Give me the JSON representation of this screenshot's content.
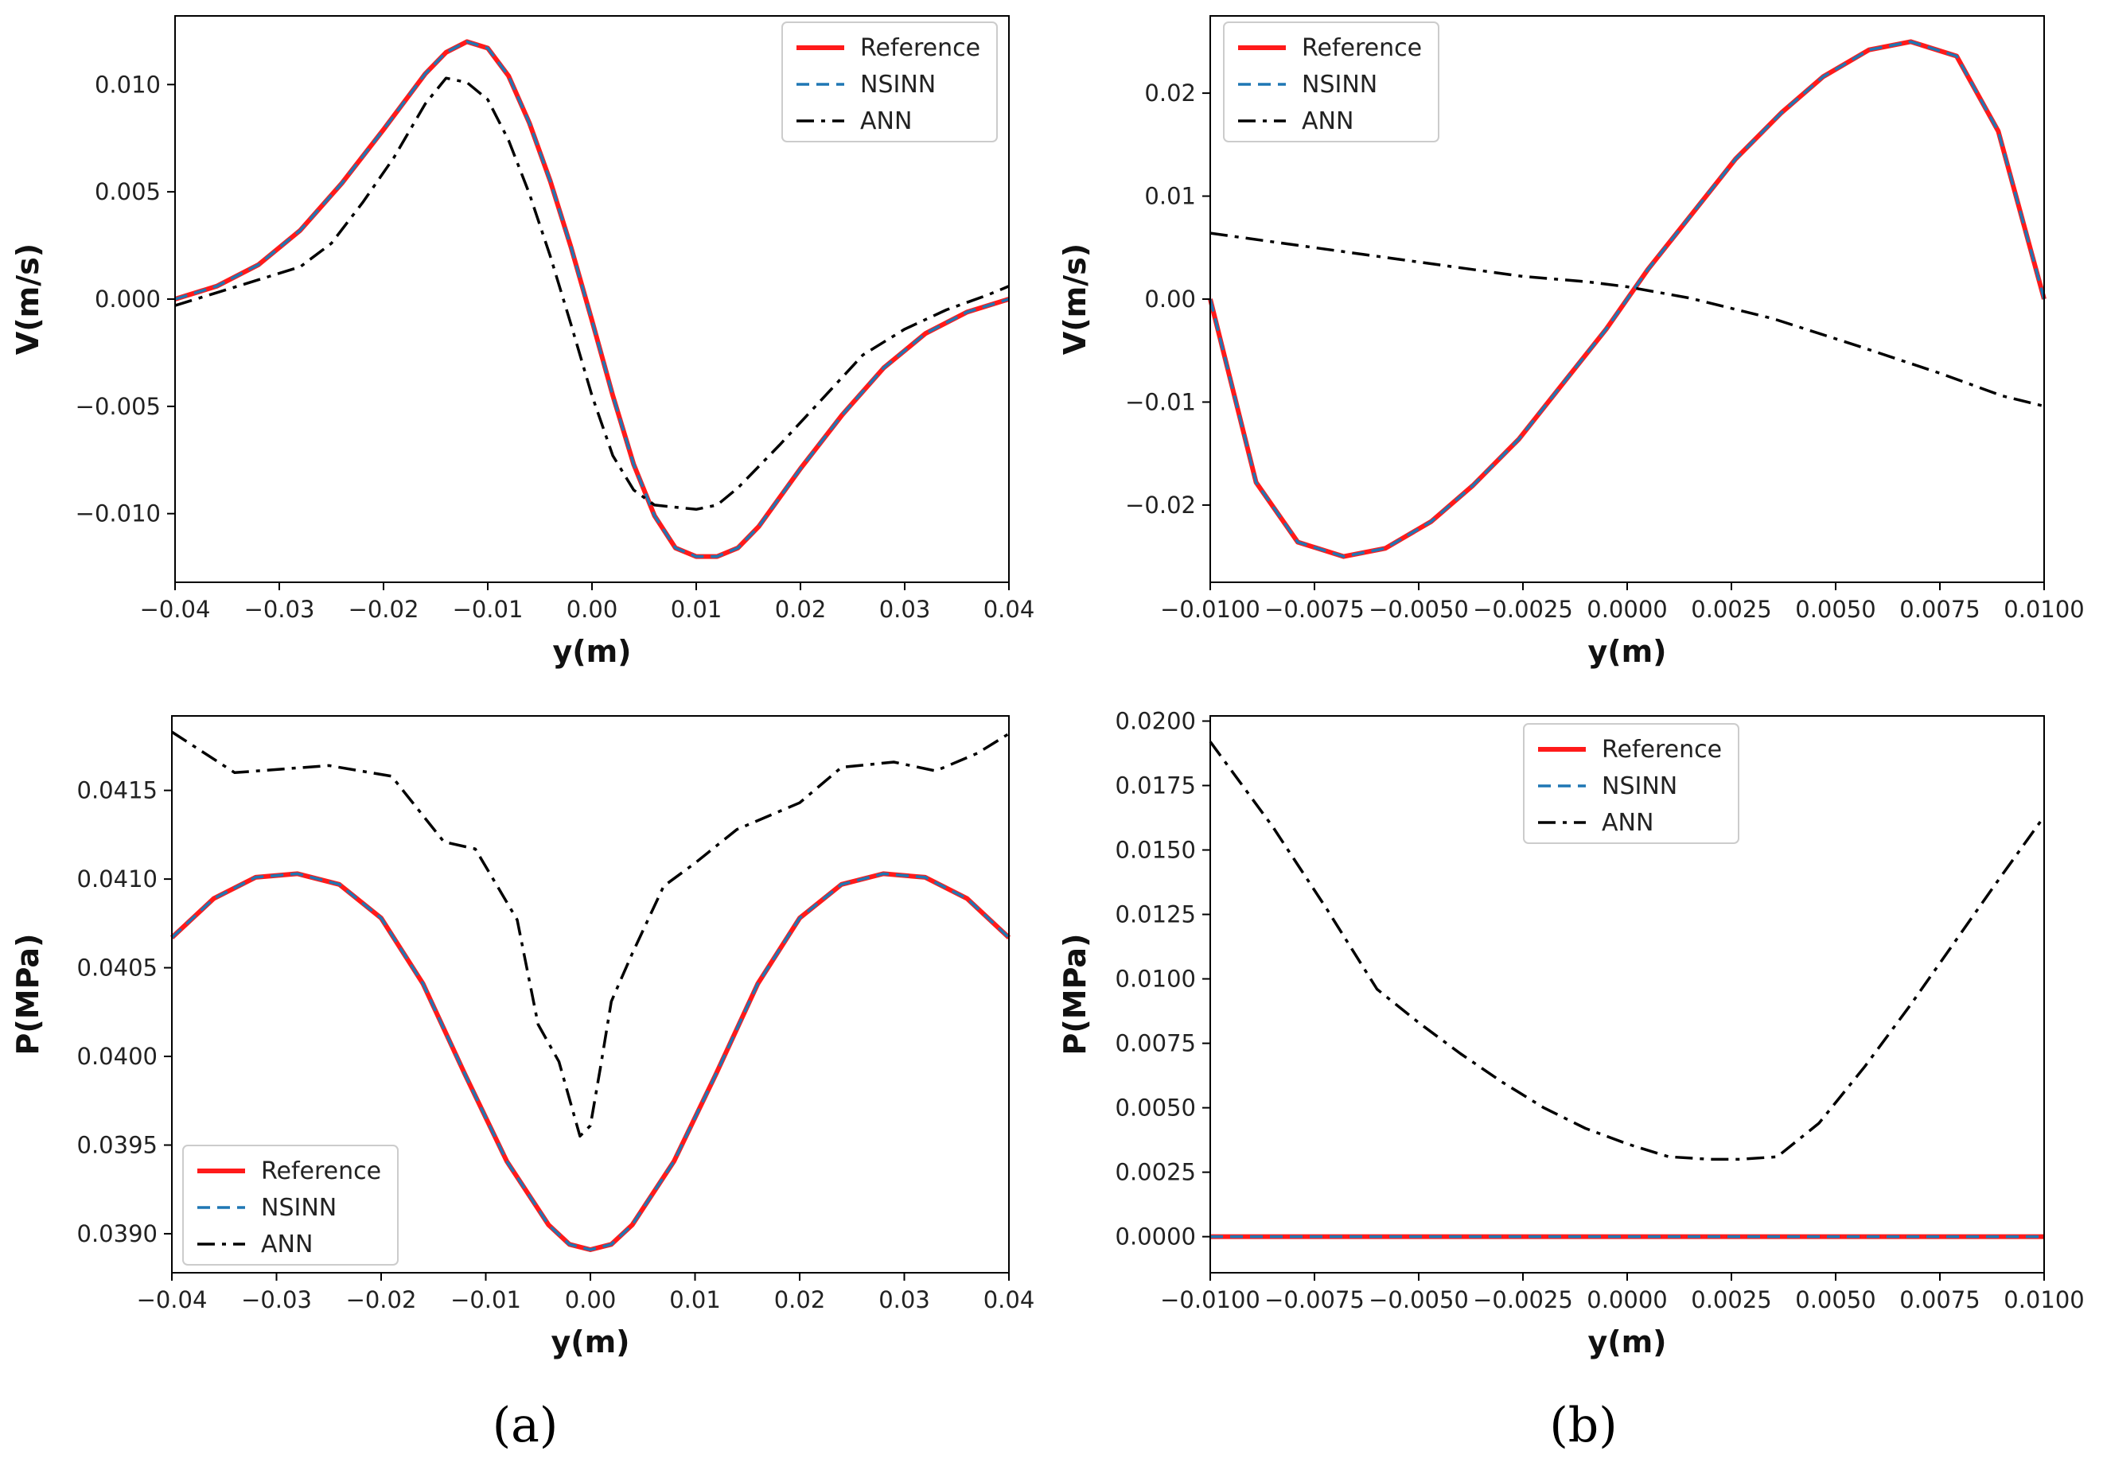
{
  "panel_labels": [
    "(a)",
    "(b)"
  ],
  "chart_data": [
    {
      "type": "line",
      "panel": "top-left",
      "xlabel": "y(m)",
      "ylabel": "V(m/s)",
      "xlim": [
        -0.04,
        0.04
      ],
      "ylim": [
        -0.0132,
        0.0132
      ],
      "xticks": [
        -0.04,
        -0.03,
        -0.02,
        -0.01,
        0.0,
        0.01,
        0.02,
        0.03,
        0.04
      ],
      "xtick_labels": [
        "−0.04",
        "−0.03",
        "−0.02",
        "−0.01",
        "0.00",
        "0.01",
        "0.02",
        "0.03",
        "0.04"
      ],
      "yticks": [
        0.01,
        0.005,
        0.0,
        -0.005,
        -0.01
      ],
      "ytick_labels": [
        "0.010",
        "0.005",
        "0.000",
        "−0.005",
        "−0.010"
      ],
      "legend": "top-right",
      "series": [
        {
          "name": "Reference",
          "color": "#ff1a1a",
          "style": "solid",
          "x": [
            -0.04,
            -0.036,
            -0.032,
            -0.028,
            -0.024,
            -0.02,
            -0.016,
            -0.014,
            -0.012,
            -0.01,
            -0.008,
            -0.006,
            -0.004,
            -0.002,
            0.0,
            0.002,
            0.004,
            0.006,
            0.008,
            0.01,
            0.012,
            0.014,
            0.016,
            0.02,
            0.024,
            0.028,
            0.032,
            0.036,
            0.04
          ],
          "y": [
            0.0,
            0.0006,
            0.0016,
            0.0032,
            0.0054,
            0.0079,
            0.0105,
            0.0115,
            0.012,
            0.0117,
            0.0104,
            0.0082,
            0.0055,
            0.0024,
            -0.001,
            -0.0045,
            -0.0077,
            -0.0101,
            -0.0116,
            -0.012,
            -0.012,
            -0.0116,
            -0.0106,
            -0.0079,
            -0.0054,
            -0.0032,
            -0.0016,
            -0.0006,
            0.0
          ]
        },
        {
          "name": "NSINN",
          "color": "#1f77b4",
          "style": "dashed",
          "x": [
            -0.04,
            -0.036,
            -0.032,
            -0.028,
            -0.024,
            -0.02,
            -0.016,
            -0.014,
            -0.012,
            -0.01,
            -0.008,
            -0.006,
            -0.004,
            -0.002,
            0.0,
            0.002,
            0.004,
            0.006,
            0.008,
            0.01,
            0.012,
            0.014,
            0.016,
            0.02,
            0.024,
            0.028,
            0.032,
            0.036,
            0.04
          ],
          "y": [
            0.0,
            0.0006,
            0.0016,
            0.0032,
            0.0054,
            0.0079,
            0.0105,
            0.0115,
            0.012,
            0.0117,
            0.0104,
            0.0082,
            0.0055,
            0.0024,
            -0.001,
            -0.0045,
            -0.0077,
            -0.0101,
            -0.0116,
            -0.012,
            -0.012,
            -0.0116,
            -0.0106,
            -0.0079,
            -0.0054,
            -0.0032,
            -0.0016,
            -0.0006,
            0.0
          ]
        },
        {
          "name": "ANN",
          "color": "#000000",
          "style": "dashdot",
          "x": [
            -0.04,
            -0.036,
            -0.032,
            -0.028,
            -0.025,
            -0.022,
            -0.019,
            -0.016,
            -0.014,
            -0.012,
            -0.01,
            -0.008,
            -0.006,
            -0.004,
            -0.002,
            0.0,
            0.002,
            0.004,
            0.006,
            0.008,
            0.01,
            0.012,
            0.014,
            0.018,
            0.022,
            0.026,
            0.03,
            0.034,
            0.038,
            0.04
          ],
          "y": [
            -0.0003,
            0.0003,
            0.0009,
            0.0015,
            0.0026,
            0.0045,
            0.0066,
            0.0091,
            0.0103,
            0.0101,
            0.0093,
            0.0074,
            0.0049,
            0.002,
            -0.0012,
            -0.0045,
            -0.0073,
            -0.0089,
            -0.0096,
            -0.0097,
            -0.0098,
            -0.0096,
            -0.0088,
            -0.0068,
            -0.0047,
            -0.0026,
            -0.0014,
            -0.0005,
            0.0002,
            0.0006
          ]
        }
      ]
    },
    {
      "type": "line",
      "panel": "top-right",
      "xlabel": "y(m)",
      "ylabel": "V(m/s)",
      "xlim": [
        -0.01,
        0.01
      ],
      "ylim": [
        -0.0275,
        0.0275
      ],
      "xticks": [
        -0.01,
        -0.0075,
        -0.005,
        -0.0025,
        0.0,
        0.0025,
        0.005,
        0.0075,
        0.01
      ],
      "xtick_labels": [
        "−0.0100",
        "−0.0075",
        "−0.0050",
        "−0.0025",
        "0.0000",
        "0.0025",
        "0.0050",
        "0.0075",
        "0.0100"
      ],
      "yticks": [
        0.02,
        0.01,
        0.0,
        -0.01,
        -0.02
      ],
      "ytick_labels": [
        "0.02",
        "0.01",
        "0.00",
        "−0.01",
        "−0.02"
      ],
      "legend": "top-left",
      "series": [
        {
          "name": "Reference",
          "color": "#ff1a1a",
          "style": "solid",
          "x": [
            -0.01,
            -0.0089,
            -0.0079,
            -0.0068,
            -0.0058,
            -0.0047,
            -0.0037,
            -0.0026,
            -0.0016,
            -0.0005,
            0.0005,
            0.0016,
            0.0026,
            0.0037,
            0.0047,
            0.0058,
            0.0068,
            0.0079,
            0.0089,
            0.01
          ],
          "y": [
            0.0,
            -0.0178,
            -0.0236,
            -0.025,
            -0.0242,
            -0.0216,
            -0.0181,
            -0.0136,
            -0.0085,
            -0.0029,
            0.0029,
            0.0085,
            0.0136,
            0.0181,
            0.0216,
            0.0242,
            0.025,
            0.0236,
            0.0163,
            0.0
          ]
        },
        {
          "name": "NSINN",
          "color": "#1f77b4",
          "style": "dashed",
          "x": [
            -0.01,
            -0.0089,
            -0.0079,
            -0.0068,
            -0.0058,
            -0.0047,
            -0.0037,
            -0.0026,
            -0.0016,
            -0.0005,
            0.0005,
            0.0016,
            0.0026,
            0.0037,
            0.0047,
            0.0058,
            0.0068,
            0.0079,
            0.0089,
            0.01
          ],
          "y": [
            0.0,
            -0.0178,
            -0.0236,
            -0.025,
            -0.0242,
            -0.0216,
            -0.0181,
            -0.0136,
            -0.0085,
            -0.0029,
            0.0029,
            0.0085,
            0.0136,
            0.0181,
            0.0216,
            0.0242,
            0.025,
            0.0236,
            0.0163,
            0.0
          ]
        },
        {
          "name": "ANN",
          "color": "#000000",
          "style": "dashdot",
          "x": [
            -0.01,
            -0.0075,
            -0.005,
            -0.0025,
            -0.001,
            0.0,
            0.0015,
            0.0035,
            0.0055,
            0.0075,
            0.009,
            0.01
          ],
          "y": [
            0.0064,
            0.005,
            0.0036,
            0.0022,
            0.0017,
            0.0012,
            0.0001,
            -0.0019,
            -0.0045,
            -0.0072,
            -0.0094,
            -0.0104
          ]
        }
      ]
    },
    {
      "type": "line",
      "panel": "bottom-left",
      "xlabel": "y(m)",
      "ylabel": "P(MPa)",
      "xlim": [
        -0.04,
        0.04
      ],
      "ylim": [
        0.03878,
        0.04192
      ],
      "xticks": [
        -0.04,
        -0.03,
        -0.02,
        -0.01,
        0.0,
        0.01,
        0.02,
        0.03,
        0.04
      ],
      "xtick_labels": [
        "−0.04",
        "−0.03",
        "−0.02",
        "−0.01",
        "0.00",
        "0.01",
        "0.02",
        "0.03",
        "0.04"
      ],
      "yticks": [
        0.0415,
        0.041,
        0.0405,
        0.04,
        0.0395,
        0.039
      ],
      "ytick_labels": [
        "0.0415",
        "0.0410",
        "0.0405",
        "0.0400",
        "0.0395",
        "0.0390"
      ],
      "legend": "bottom-left",
      "series": [
        {
          "name": "Reference",
          "color": "#ff1a1a",
          "style": "solid",
          "x": [
            -0.04,
            -0.036,
            -0.032,
            -0.028,
            -0.024,
            -0.02,
            -0.016,
            -0.012,
            -0.008,
            -0.004,
            -0.002,
            0.0,
            0.002,
            0.004,
            0.008,
            0.012,
            0.016,
            0.02,
            0.024,
            0.028,
            0.032,
            0.036,
            0.04
          ],
          "y": [
            0.04067,
            0.04089,
            0.04101,
            0.04103,
            0.04097,
            0.04078,
            0.04041,
            0.0399,
            0.03941,
            0.03905,
            0.03894,
            0.03891,
            0.03894,
            0.03905,
            0.03941,
            0.0399,
            0.04041,
            0.04078,
            0.04097,
            0.04103,
            0.04101,
            0.04089,
            0.04067
          ]
        },
        {
          "name": "NSINN",
          "color": "#1f77b4",
          "style": "dashed",
          "x": [
            -0.04,
            -0.036,
            -0.032,
            -0.028,
            -0.024,
            -0.02,
            -0.016,
            -0.012,
            -0.008,
            -0.004,
            -0.002,
            0.0,
            0.002,
            0.004,
            0.008,
            0.012,
            0.016,
            0.02,
            0.024,
            0.028,
            0.032,
            0.036,
            0.04
          ],
          "y": [
            0.04067,
            0.04089,
            0.04101,
            0.04103,
            0.04097,
            0.04078,
            0.04041,
            0.0399,
            0.03941,
            0.03905,
            0.03894,
            0.03891,
            0.03894,
            0.03905,
            0.03941,
            0.0399,
            0.04041,
            0.04078,
            0.04097,
            0.04103,
            0.04101,
            0.04089,
            0.04067
          ]
        },
        {
          "name": "ANN",
          "color": "#000000",
          "style": "dashdot",
          "x": [
            -0.04,
            -0.034,
            -0.025,
            -0.019,
            -0.014,
            -0.011,
            -0.009,
            -0.007,
            -0.005,
            -0.003,
            -0.001,
            0.0,
            0.001,
            0.002,
            0.004,
            0.007,
            0.01,
            0.014,
            0.02,
            0.024,
            0.029,
            0.033,
            0.037,
            0.04
          ],
          "y": [
            0.04183,
            0.0416,
            0.04164,
            0.04158,
            0.04121,
            0.04117,
            0.04097,
            0.04077,
            0.04018,
            0.03997,
            0.03955,
            0.03961,
            0.03995,
            0.04031,
            0.04058,
            0.04096,
            0.04109,
            0.04128,
            0.04143,
            0.04163,
            0.04166,
            0.04161,
            0.04171,
            0.04182
          ]
        }
      ]
    },
    {
      "type": "line",
      "panel": "bottom-right",
      "xlabel": "y(m)",
      "ylabel": "P(MPa)",
      "xlim": [
        -0.01,
        0.01
      ],
      "ylim": [
        -0.0014,
        0.0202
      ],
      "xticks": [
        -0.01,
        -0.0075,
        -0.005,
        -0.0025,
        0.0,
        0.0025,
        0.005,
        0.0075,
        0.01
      ],
      "xtick_labels": [
        "−0.0100",
        "−0.0075",
        "−0.0050",
        "−0.0025",
        "0.0000",
        "0.0025",
        "0.0050",
        "0.0075",
        "0.0100"
      ],
      "yticks": [
        0.02,
        0.0175,
        0.015,
        0.0125,
        0.01,
        0.0075,
        0.005,
        0.0025,
        0.0
      ],
      "ytick_labels": [
        "0.0200",
        "0.0175",
        "0.0150",
        "0.0125",
        "0.0100",
        "0.0075",
        "0.0050",
        "0.0025",
        "0.0000"
      ],
      "legend": "top-center",
      "series": [
        {
          "name": "Reference",
          "color": "#ff1a1a",
          "style": "solid",
          "x": [
            -0.01,
            0.01
          ],
          "y": [
            0.0,
            0.0
          ]
        },
        {
          "name": "NSINN",
          "color": "#1f77b4",
          "style": "dashed",
          "x": [
            -0.01,
            0.01
          ],
          "y": [
            0.0,
            0.0
          ]
        },
        {
          "name": "ANN",
          "color": "#000000",
          "style": "dashdot",
          "x": [
            -0.01,
            -0.0085,
            -0.0072,
            -0.006,
            -0.005,
            -0.004,
            -0.003,
            -0.002,
            -0.001,
            0.0,
            0.001,
            0.002,
            0.0027,
            0.0036,
            0.0046,
            0.0057,
            0.0068,
            0.0078,
            0.0088,
            0.01
          ],
          "y": [
            0.0192,
            0.0159,
            0.0127,
            0.0096,
            0.0083,
            0.0071,
            0.006,
            0.005,
            0.0042,
            0.0036,
            0.0031,
            0.003,
            0.003,
            0.0031,
            0.0044,
            0.0066,
            0.009,
            0.0113,
            0.0136,
            0.0163
          ]
        }
      ]
    }
  ]
}
